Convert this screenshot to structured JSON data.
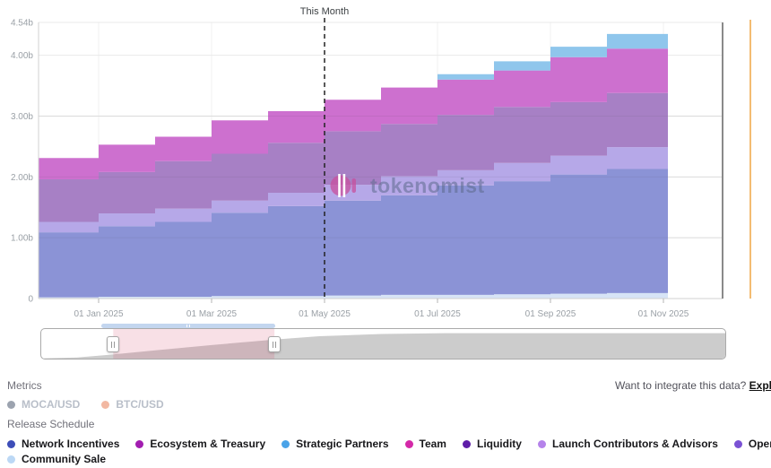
{
  "watermark": {
    "text": "tokenomist",
    "logo_color": "#c8509e"
  },
  "chart_data": {
    "type": "area",
    "stacked": true,
    "step": "monthly",
    "title": "",
    "xlabel": "",
    "ylabel": "",
    "ylim": [
      0,
      4.54
    ],
    "grid": true,
    "x": [
      "Dec 2024",
      "Jan 2025",
      "Feb 2025",
      "Mar 2025",
      "Apr 2025",
      "May 2025",
      "Jun 2025",
      "Jul 2025",
      "Aug 2025",
      "Sep 2025",
      "Oct 2025"
    ],
    "x_tick_labels": [
      "01 Jan 2025",
      "01 Mar 2025",
      "01 May 2025",
      "01 Jul 2025",
      "01 Sep 2025",
      "01 Nov 2025"
    ],
    "y_ticks": [
      {
        "value": 4.54,
        "label": "4.54b"
      },
      {
        "value": 4.0,
        "label": "4.00b"
      },
      {
        "value": 3.0,
        "label": "3.00b"
      },
      {
        "value": 2.0,
        "label": "2.00b"
      },
      {
        "value": 1.0,
        "label": "1.00b"
      },
      {
        "value": 0,
        "label": "0"
      }
    ],
    "annotation": {
      "label": "This Month",
      "x": "01 May 2025"
    },
    "series": [
      {
        "name": "Community Sale",
        "color": "#d7e4f6",
        "values": [
          0.02,
          0.03,
          0.03,
          0.04,
          0.04,
          0.05,
          0.06,
          0.06,
          0.07,
          0.08,
          0.09
        ]
      },
      {
        "name": "Network Incentives",
        "color": "#8b93d6",
        "values": [
          1.07,
          1.16,
          1.23,
          1.37,
          1.48,
          1.56,
          1.64,
          1.8,
          1.86,
          1.96,
          2.04
        ]
      },
      {
        "name": "Launch Contributors & Advisors",
        "color": "#b6a8e8",
        "values": [
          0.17,
          0.21,
          0.22,
          0.2,
          0.22,
          0.26,
          0.31,
          0.25,
          0.3,
          0.31,
          0.36
        ]
      },
      {
        "name": "Operational Expenses",
        "color": "#a780c5",
        "values": [
          0.7,
          0.68,
          0.78,
          0.77,
          0.82,
          0.88,
          0.86,
          0.91,
          0.92,
          0.88,
          0.89
        ]
      },
      {
        "name": "Ecosystem & Treasury",
        "color": "#cd70cf",
        "values": [
          0.35,
          0.45,
          0.4,
          0.55,
          0.52,
          0.52,
          0.6,
          0.58,
          0.6,
          0.74,
          0.73
        ]
      },
      {
        "name": "Strategic Partners",
        "color": "#8fc6ec",
        "values": [
          0,
          0,
          0,
          0,
          0,
          0,
          0,
          0.09,
          0.15,
          0.17,
          0.24
        ]
      }
    ]
  },
  "navigator": {
    "curve": [
      [
        0,
        0.04
      ],
      [
        40,
        0.07
      ],
      [
        80,
        0.18
      ],
      [
        130,
        0.34
      ],
      [
        190,
        0.52
      ],
      [
        260,
        0.72
      ],
      [
        310,
        0.84
      ],
      [
        380,
        0.92
      ],
      [
        450,
        0.95
      ],
      [
        765,
        0.95
      ]
    ],
    "selection": {
      "start": 0.105,
      "end": 0.34
    },
    "selection_color": "rgba(214,60,100,0.16)"
  },
  "metrics": {
    "label": "Metrics",
    "items": [
      {
        "label": "MOCA/USD",
        "color": "#9ca3af",
        "active": false
      },
      {
        "label": "BTC/USD",
        "color": "#f2b8a2",
        "active": false
      }
    ]
  },
  "api_prompt": {
    "text": "Want to integrate this data? ",
    "link_label": "Explore our API"
  },
  "release_schedule": {
    "label": "Release Schedule",
    "items": [
      {
        "label": "Network Incentives",
        "color": "#3d4eb8"
      },
      {
        "label": "Ecosystem & Treasury",
        "color": "#a21db0"
      },
      {
        "label": "Strategic Partners",
        "color": "#4aa3e8"
      },
      {
        "label": "Team",
        "color": "#d429a8"
      },
      {
        "label": "Liquidity",
        "color": "#5f1da8"
      },
      {
        "label": "Launch Contributors & Advisors",
        "color": "#b583ea"
      },
      {
        "label": "Operational Expenses",
        "color": "#7a52d4"
      },
      {
        "label": "Community Sale",
        "color": "#bcd8f5"
      }
    ]
  }
}
